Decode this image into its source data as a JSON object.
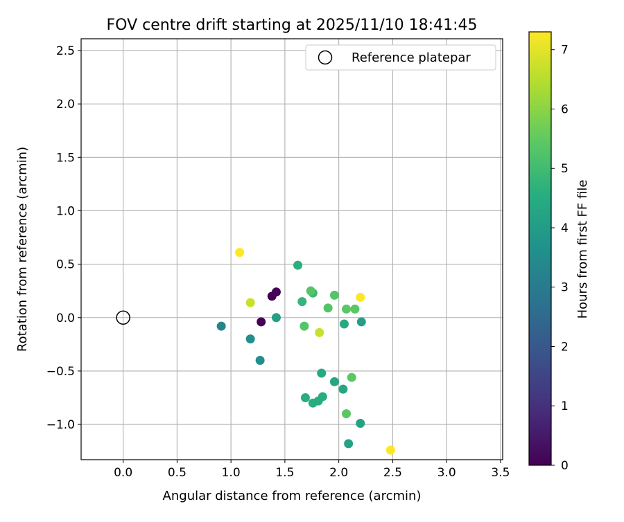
{
  "chart_data": {
    "type": "scatter",
    "title": "FOV centre drift starting at 2025/11/10 18:41:45",
    "xlabel": "Angular distance from reference (arcmin)",
    "ylabel": "Rotation from reference (arcmin)",
    "xlim": [
      -0.39,
      3.52
    ],
    "ylim": [
      -1.33,
      2.61
    ],
    "xticks": [
      0.0,
      0.5,
      1.0,
      1.5,
      2.0,
      2.5,
      3.0,
      3.5
    ],
    "yticks": [
      -1.0,
      -0.5,
      0.0,
      0.5,
      1.0,
      1.5,
      2.0,
      2.5
    ],
    "grid": true,
    "legend": {
      "placement": "top-right",
      "entries": [
        {
          "label": "Reference platepar",
          "marker": "open-circle"
        }
      ]
    },
    "reference_point": {
      "x": 0.0,
      "y": 0.0
    },
    "colorbar": {
      "label": "Hours from first FF file",
      "colormap": "viridis",
      "range": [
        0,
        7.3
      ],
      "ticks": [
        0,
        1,
        2,
        3,
        4,
        5,
        6,
        7
      ]
    },
    "points": [
      {
        "x": 1.28,
        "y": -0.04,
        "hours": 0.0
      },
      {
        "x": 1.38,
        "y": 0.2,
        "hours": 0.0
      },
      {
        "x": 1.42,
        "y": 0.24,
        "hours": 0.05
      },
      {
        "x": 0.91,
        "y": -0.08,
        "hours": 3.3
      },
      {
        "x": 1.18,
        "y": -0.2,
        "hours": 3.6
      },
      {
        "x": 1.27,
        "y": -0.4,
        "hours": 3.6
      },
      {
        "x": 1.42,
        "y": 0.0,
        "hours": 4.1
      },
      {
        "x": 2.21,
        "y": -0.04,
        "hours": 4.1
      },
      {
        "x": 2.05,
        "y": -0.06,
        "hours": 4.4
      },
      {
        "x": 2.09,
        "y": -1.18,
        "hours": 4.2
      },
      {
        "x": 2.2,
        "y": -0.99,
        "hours": 4.2
      },
      {
        "x": 2.04,
        "y": -0.67,
        "hours": 4.3
      },
      {
        "x": 1.96,
        "y": -0.6,
        "hours": 4.3
      },
      {
        "x": 1.84,
        "y": -0.52,
        "hours": 4.4
      },
      {
        "x": 1.69,
        "y": -0.75,
        "hours": 4.5
      },
      {
        "x": 1.76,
        "y": -0.8,
        "hours": 4.5
      },
      {
        "x": 1.81,
        "y": -0.78,
        "hours": 4.5
      },
      {
        "x": 1.85,
        "y": -0.74,
        "hours": 4.5
      },
      {
        "x": 1.62,
        "y": 0.49,
        "hours": 4.6
      },
      {
        "x": 1.66,
        "y": 0.15,
        "hours": 4.8
      },
      {
        "x": 1.76,
        "y": 0.23,
        "hours": 4.9
      },
      {
        "x": 1.74,
        "y": 0.25,
        "hours": 5.3
      },
      {
        "x": 1.68,
        "y": -0.08,
        "hours": 5.3
      },
      {
        "x": 1.9,
        "y": 0.09,
        "hours": 5.3
      },
      {
        "x": 1.96,
        "y": 0.21,
        "hours": 5.3
      },
      {
        "x": 2.07,
        "y": 0.08,
        "hours": 5.4
      },
      {
        "x": 2.15,
        "y": 0.08,
        "hours": 5.4
      },
      {
        "x": 2.07,
        "y": -0.9,
        "hours": 5.4
      },
      {
        "x": 2.12,
        "y": -0.56,
        "hours": 5.4
      },
      {
        "x": 1.18,
        "y": 0.14,
        "hours": 6.7
      },
      {
        "x": 1.82,
        "y": -0.14,
        "hours": 6.7
      },
      {
        "x": 1.08,
        "y": 0.61,
        "hours": 7.3
      },
      {
        "x": 2.2,
        "y": 0.19,
        "hours": 7.3
      },
      {
        "x": 2.48,
        "y": -1.24,
        "hours": 7.3
      }
    ]
  }
}
